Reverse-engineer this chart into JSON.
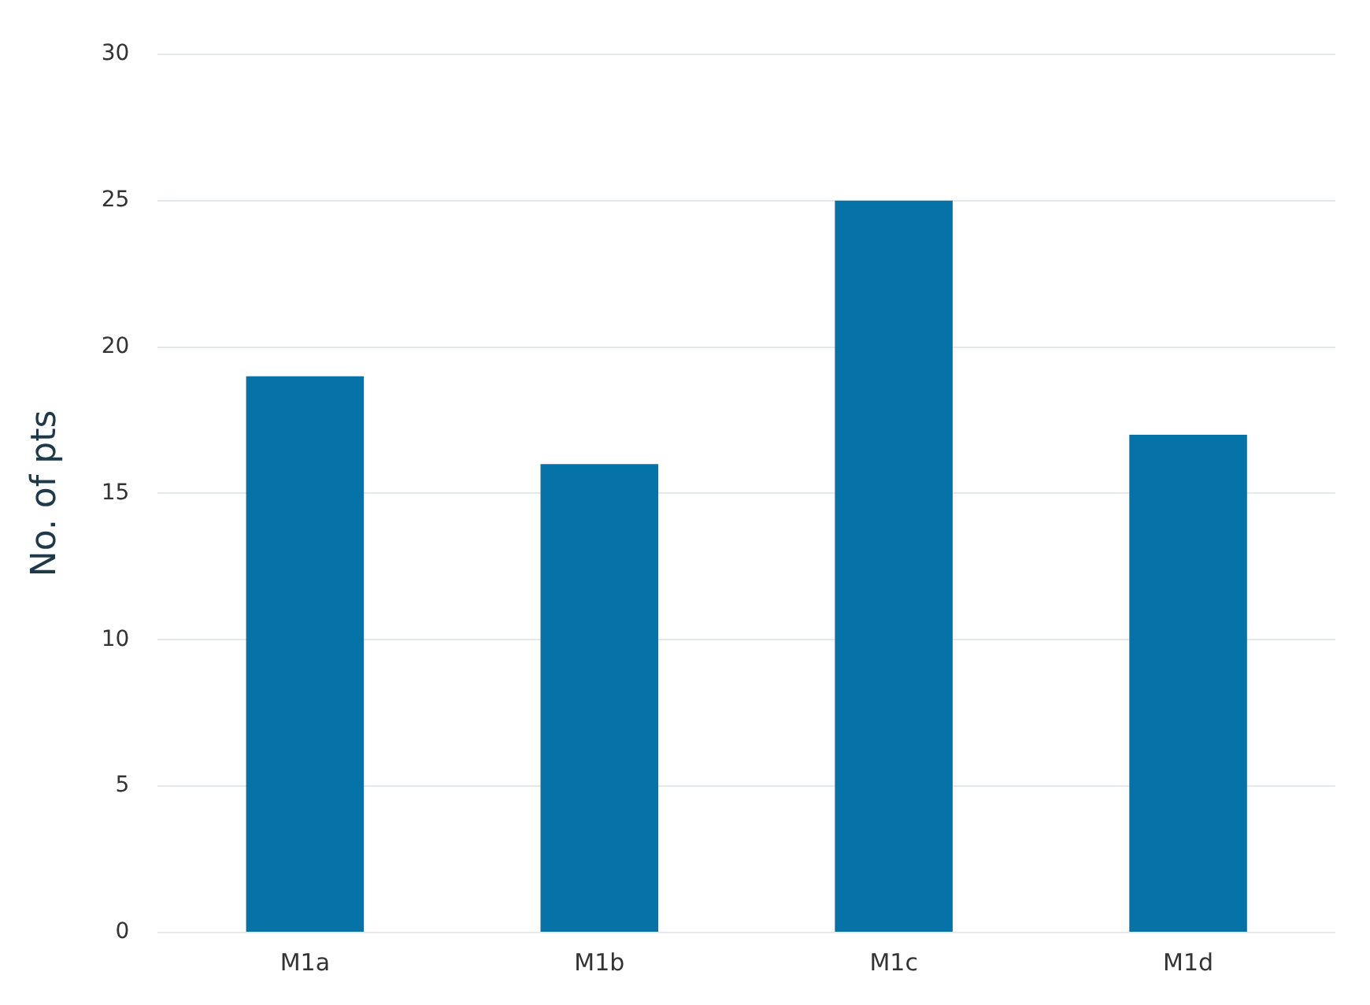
{
  "chart_data": {
    "type": "bar",
    "ylabel": "No. of pts",
    "categories": [
      "M1a",
      "M1b",
      "M1c",
      "M1d"
    ],
    "values": [
      19,
      16,
      25,
      17
    ],
    "color": "#0673a8",
    "ylim": [
      0,
      30
    ],
    "yticks": [
      0,
      5,
      10,
      15,
      20,
      25,
      30
    ],
    "grid": "y"
  }
}
